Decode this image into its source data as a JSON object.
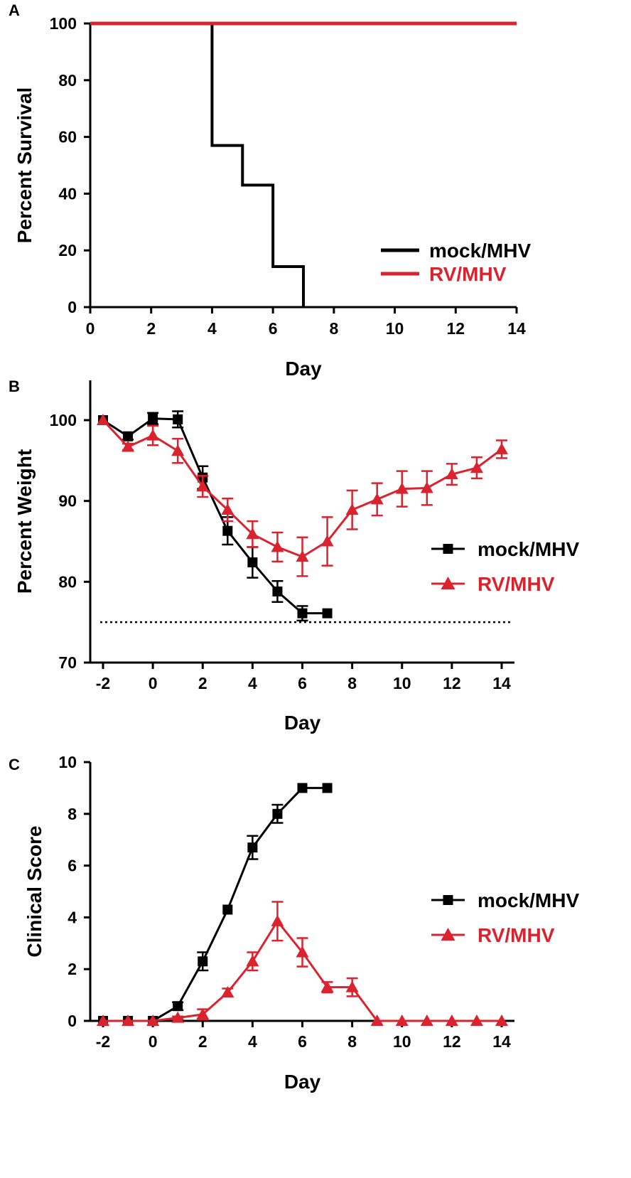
{
  "colors": {
    "mock": "#000000",
    "rv": "#d9232e",
    "axis": "#000000"
  },
  "chart_data": [
    {
      "panel_label": "A",
      "type": "line",
      "step": true,
      "xlabel": "Day",
      "ylabel": "Percent Survival",
      "xlim": [
        0,
        14
      ],
      "ylim": [
        0,
        100
      ],
      "xticks": [
        "0",
        "2",
        "4",
        "6",
        "8",
        "10",
        "12",
        "14"
      ],
      "yticks": [
        "0",
        "20",
        "40",
        "60",
        "80",
        "100"
      ],
      "legend": [
        "mock/MHV",
        "RV/MHV"
      ],
      "legend_position": "bottom-right",
      "series": [
        {
          "name": "mock/MHV",
          "marker": "none",
          "x": [
            0,
            4,
            5,
            6,
            7
          ],
          "y": [
            100,
            57,
            43,
            14.3,
            0
          ]
        },
        {
          "name": "RV/MHV",
          "marker": "none",
          "x": [
            0,
            14
          ],
          "y": [
            100,
            100
          ]
        }
      ]
    },
    {
      "panel_label": "B",
      "type": "line",
      "xlabel": "Day",
      "ylabel": "Percent Weight",
      "xlim": [
        -2,
        14
      ],
      "ylim": [
        70,
        105
      ],
      "xticks": [
        "-2",
        "0",
        "2",
        "4",
        "6",
        "8",
        "10",
        "12",
        "14"
      ],
      "yticks": [
        "70",
        "80",
        "90",
        "100"
      ],
      "reference_line": 75,
      "legend": [
        "mock/MHV",
        "RV/MHV"
      ],
      "legend_position": "right",
      "series": [
        {
          "name": "mock/MHV",
          "marker": "square",
          "x": [
            -2,
            -1,
            0,
            1,
            2,
            3,
            4,
            5,
            6,
            7
          ],
          "y": [
            100,
            98,
            100.2,
            100.1,
            92.9,
            86.3,
            82.4,
            78.8,
            76.1,
            76.1
          ],
          "err": [
            0,
            0.4,
            0.7,
            1.0,
            1.4,
            1.7,
            1.9,
            1.3,
            0.9,
            0
          ]
        },
        {
          "name": "RV/MHV",
          "marker": "triangle",
          "x": [
            -2,
            -1,
            0,
            1,
            2,
            3,
            4,
            5,
            6,
            7,
            8,
            9,
            10,
            11,
            12,
            13,
            14
          ],
          "y": [
            100,
            96.7,
            98.1,
            96.2,
            91.8,
            88.9,
            85.9,
            84.3,
            83.1,
            85.0,
            88.9,
            90.2,
            91.5,
            91.6,
            93.3,
            94.1,
            96.4
          ],
          "err": [
            0,
            0.4,
            1.2,
            1.5,
            1.3,
            1.4,
            1.6,
            1.8,
            2.4,
            3.0,
            2.4,
            2.0,
            2.2,
            2.1,
            1.3,
            1.3,
            1.1
          ]
        }
      ]
    },
    {
      "panel_label": "C",
      "type": "line",
      "xlabel": "Day",
      "ylabel": "Clinical Score",
      "xlim": [
        -2,
        14
      ],
      "ylim": [
        0,
        10
      ],
      "xticks": [
        "-2",
        "0",
        "2",
        "4",
        "6",
        "8",
        "10",
        "12",
        "14"
      ],
      "yticks": [
        "0",
        "2",
        "4",
        "6",
        "8",
        "10"
      ],
      "legend": [
        "mock/MHV",
        "RV/MHV"
      ],
      "legend_position": "right",
      "series": [
        {
          "name": "mock/MHV",
          "marker": "square",
          "x": [
            -2,
            -1,
            0,
            1,
            2,
            3,
            4,
            5,
            6,
            7
          ],
          "y": [
            0,
            0,
            0,
            0.57,
            2.3,
            4.3,
            6.7,
            8.0,
            9.0,
            9.0
          ],
          "err": [
            0,
            0,
            0,
            0.15,
            0.35,
            0,
            0.45,
            0.35,
            0,
            0
          ]
        },
        {
          "name": "RV/MHV",
          "marker": "triangle",
          "x": [
            -2,
            -1,
            0,
            1,
            2,
            3,
            4,
            5,
            6,
            7,
            8,
            9,
            10,
            11,
            12,
            13,
            14
          ],
          "y": [
            0,
            0,
            0,
            0.12,
            0.25,
            1.1,
            2.3,
            3.85,
            2.65,
            1.3,
            1.3,
            0,
            0,
            0,
            0,
            0,
            0
          ],
          "err": [
            0,
            0,
            0,
            0.05,
            0.2,
            0.15,
            0.35,
            0.75,
            0.55,
            0.2,
            0.35,
            0,
            0,
            0,
            0,
            0,
            0
          ]
        }
      ]
    }
  ]
}
